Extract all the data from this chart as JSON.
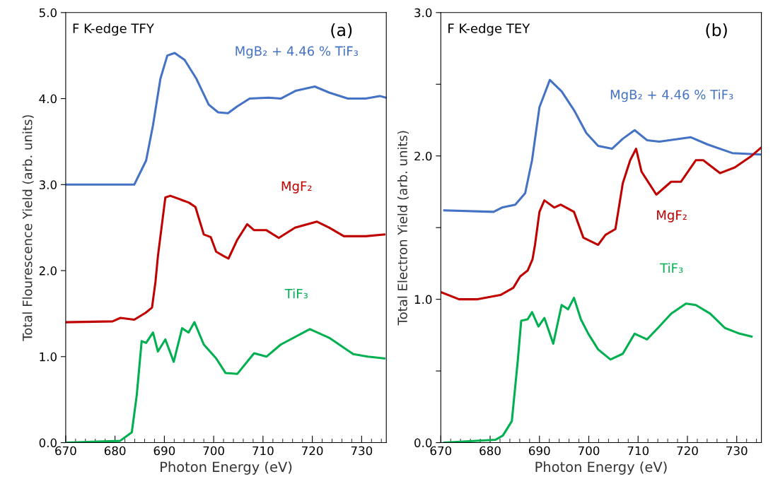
{
  "chart_data": [
    {
      "type": "line",
      "title": "F K-edge TFY",
      "xlabel": "Photon Energy (eV)",
      "ylabel": "Total Flourescence Yield (arb. units)",
      "annotations": [
        "(a)"
      ],
      "xlim": [
        670,
        735
      ],
      "xticks": [
        670,
        680,
        690,
        700,
        710,
        720,
        730
      ],
      "ylim": [
        0,
        5
      ],
      "yticks": [
        {
          "value": 0,
          "label": "0.0"
        },
        {
          "value": 1,
          "label": "1.0"
        },
        {
          "value": 2,
          "label": "2.0"
        },
        {
          "value": 3,
          "label": "3.0"
        },
        {
          "value": 4,
          "label": "4.0"
        },
        {
          "value": 5,
          "label": "5.0"
        }
      ],
      "grid": false,
      "legend": false,
      "series": [
        {
          "name": "MgB₂ + 4.46 % TiF₃",
          "color": "#4472c4",
          "x": [
            670,
            683.6,
            683.9,
            686.3,
            687.7,
            689.2,
            690.6,
            692.1,
            694.1,
            696.5,
            699,
            700.9,
            702.9,
            704.8,
            707.3,
            711.1,
            713.6,
            716.6,
            720.5,
            723.4,
            727.2,
            730.8,
            733.7,
            735
          ],
          "values": [
            3.0,
            3.0,
            3.0,
            3.28,
            3.69,
            4.23,
            4.5,
            4.53,
            4.45,
            4.23,
            3.93,
            3.84,
            3.83,
            3.91,
            4.0,
            4.01,
            4.0,
            4.09,
            4.14,
            4.07,
            4.0,
            4.0,
            4.03,
            4.01
          ]
        },
        {
          "name": "MgF₂",
          "color": "#c00000",
          "x": [
            670,
            679.5,
            681.1,
            683.9,
            686.2,
            687.5,
            688.2,
            688.7,
            690.2,
            691.2,
            695,
            696.3,
            698,
            699.4,
            700.5,
            702,
            703,
            704.8,
            706.8,
            708.2,
            710.7,
            713.2,
            716.5,
            720.9,
            723.4,
            726.4,
            730.8,
            734.6
          ],
          "values": [
            1.4,
            1.41,
            1.45,
            1.43,
            1.51,
            1.57,
            1.87,
            2.17,
            2.85,
            2.87,
            2.79,
            2.74,
            2.42,
            2.39,
            2.22,
            2.17,
            2.14,
            2.36,
            2.54,
            2.47,
            2.47,
            2.38,
            2.5,
            2.57,
            2.5,
            2.4,
            2.4,
            2.42
          ]
        },
        {
          "name": "TiF₃",
          "color": "#00b050",
          "x": [
            670,
            681,
            683.4,
            684.4,
            685.4,
            686.3,
            687.7,
            688.7,
            690.2,
            691.9,
            693.6,
            694.9,
            696.1,
            698,
            700.5,
            702.4,
            704.8,
            708.2,
            710.7,
            713.6,
            719.5,
            723.4,
            728.3,
            731.2,
            734.6
          ],
          "values": [
            0,
            0.02,
            0.12,
            0.55,
            1.18,
            1.16,
            1.28,
            1.06,
            1.2,
            0.94,
            1.33,
            1.28,
            1.4,
            1.14,
            0.98,
            0.81,
            0.8,
            1.04,
            1.0,
            1.14,
            1.32,
            1.22,
            1.03,
            1.0,
            0.98
          ]
        }
      ]
    },
    {
      "type": "line",
      "title": "F K-edge TEY",
      "xlabel": "Photon Energy (eV)",
      "ylabel": "Total Electron Yield (arb. units)",
      "annotations": [
        "(b)"
      ],
      "xlim": [
        670,
        735
      ],
      "xticks": [
        670,
        680,
        690,
        700,
        710,
        720,
        730
      ],
      "ylim": [
        0,
        3
      ],
      "yticks": [
        {
          "value": 0,
          "label": "0.0"
        },
        {
          "value": 0.5,
          "label": null
        },
        {
          "value": 1,
          "label": "1.0"
        },
        {
          "value": 1.5,
          "label": null
        },
        {
          "value": 2,
          "label": "2.0"
        },
        {
          "value": 2.5,
          "label": null
        },
        {
          "value": 3,
          "label": "3.0"
        }
      ],
      "grid": false,
      "legend": false,
      "series": [
        {
          "name": "MgB₂ + 4.46 % TiF₃",
          "color": "#4472c4",
          "x": [
            670.7,
            680.7,
            682.4,
            685.1,
            687.1,
            688.5,
            690,
            692.1,
            694.5,
            697,
            699.5,
            701.9,
            704.7,
            706.9,
            709.3,
            711.8,
            714.3,
            720.7,
            724.1,
            729.1,
            735
          ],
          "values": [
            1.62,
            1.61,
            1.64,
            1.66,
            1.74,
            1.97,
            2.34,
            2.53,
            2.45,
            2.32,
            2.16,
            2.07,
            2.05,
            2.12,
            2.18,
            2.11,
            2.1,
            2.13,
            2.08,
            2.02,
            2.01
          ]
        },
        {
          "name": "MgF₂",
          "color": "#c00000",
          "x": [
            670,
            673.7,
            677.3,
            682.1,
            684.7,
            686.1,
            687.6,
            688.6,
            689.1,
            690,
            691,
            693,
            694.3,
            697,
            698.9,
            701.9,
            703.4,
            705.4,
            706.9,
            708.4,
            709.6,
            710.7,
            713.7,
            716.7,
            718.7,
            721.7,
            723.2,
            726.6,
            729.6,
            733,
            735
          ],
          "values": [
            1.05,
            1.0,
            1.0,
            1.03,
            1.08,
            1.16,
            1.2,
            1.28,
            1.38,
            1.61,
            1.69,
            1.64,
            1.66,
            1.61,
            1.43,
            1.38,
            1.45,
            1.49,
            1.81,
            1.97,
            2.05,
            1.89,
            1.73,
            1.82,
            1.82,
            1.97,
            1.97,
            1.88,
            1.92,
            2.0,
            2.06
          ]
        },
        {
          "name": "TiF₃",
          "color": "#00b050",
          "x": [
            670.7,
            681.1,
            682.6,
            684.4,
            685.6,
            686.3,
            687.6,
            688.5,
            689.8,
            691,
            692.8,
            694.5,
            695.8,
            697,
            698.4,
            699.9,
            701.9,
            704.4,
            706.9,
            709.3,
            711.8,
            714.3,
            716.7,
            719.7,
            721.7,
            724.6,
            727.6,
            730.6,
            733
          ],
          "values": [
            0,
            0.02,
            0.05,
            0.15,
            0.57,
            0.85,
            0.86,
            0.91,
            0.81,
            0.87,
            0.69,
            0.96,
            0.93,
            1.01,
            0.86,
            0.76,
            0.65,
            0.58,
            0.62,
            0.76,
            0.72,
            0.81,
            0.9,
            0.97,
            0.96,
            0.9,
            0.8,
            0.76,
            0.74
          ]
        }
      ]
    }
  ]
}
